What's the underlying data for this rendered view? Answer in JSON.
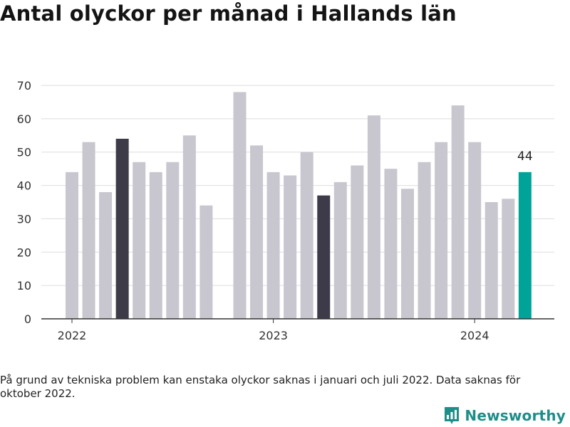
{
  "title": "Antal olyckor per månad i Hallands län",
  "footnote": "På grund av tekniska problem kan enstaka olyckor saknas i januari och juli 2022. Data saknas för oktober 2022.",
  "brand": {
    "name": "Newsworthy",
    "icon": "bar-chart-logo-icon",
    "color": "#1d8f88"
  },
  "colors": {
    "bar": "#c8c7cf",
    "highlight": "#3d3b48",
    "latest": "#00a398",
    "grid": "#dddddd",
    "axis": "#333333"
  },
  "chart_data": {
    "type": "bar",
    "title": "Antal olyckor per månad i Hallands län",
    "xlabel": "",
    "ylabel": "",
    "ylim": [
      0,
      70
    ],
    "yticks": [
      0,
      10,
      20,
      30,
      40,
      50,
      60,
      70
    ],
    "grid": true,
    "x_tick_labels": [
      {
        "label": "2022",
        "x": "2022-01"
      },
      {
        "label": "2023",
        "x": "2023-01"
      },
      {
        "label": "2024",
        "x": "2024-01"
      }
    ],
    "points": [
      {
        "x": "2022-01",
        "value": 44,
        "style": "bar"
      },
      {
        "x": "2022-02",
        "value": 53,
        "style": "bar"
      },
      {
        "x": "2022-03",
        "value": 38,
        "style": "bar"
      },
      {
        "x": "2022-04",
        "value": 54,
        "style": "highlight"
      },
      {
        "x": "2022-05",
        "value": 47,
        "style": "bar"
      },
      {
        "x": "2022-06",
        "value": 44,
        "style": "bar"
      },
      {
        "x": "2022-07",
        "value": 47,
        "style": "bar"
      },
      {
        "x": "2022-08",
        "value": 55,
        "style": "bar"
      },
      {
        "x": "2022-09",
        "value": 34,
        "style": "bar"
      },
      {
        "x": "2022-10",
        "value": null,
        "style": "missing"
      },
      {
        "x": "2022-11",
        "value": 68,
        "style": "bar"
      },
      {
        "x": "2022-12",
        "value": 52,
        "style": "bar"
      },
      {
        "x": "2023-01",
        "value": 44,
        "style": "bar"
      },
      {
        "x": "2023-02",
        "value": 43,
        "style": "bar"
      },
      {
        "x": "2023-03",
        "value": 50,
        "style": "bar"
      },
      {
        "x": "2023-04",
        "value": 37,
        "style": "highlight"
      },
      {
        "x": "2023-05",
        "value": 41,
        "style": "bar"
      },
      {
        "x": "2023-06",
        "value": 46,
        "style": "bar"
      },
      {
        "x": "2023-07",
        "value": 61,
        "style": "bar"
      },
      {
        "x": "2023-08",
        "value": 45,
        "style": "bar"
      },
      {
        "x": "2023-09",
        "value": 39,
        "style": "bar"
      },
      {
        "x": "2023-10",
        "value": 47,
        "style": "bar"
      },
      {
        "x": "2023-11",
        "value": 53,
        "style": "bar"
      },
      {
        "x": "2023-12",
        "value": 64,
        "style": "bar"
      },
      {
        "x": "2024-01",
        "value": 53,
        "style": "bar"
      },
      {
        "x": "2024-02",
        "value": 35,
        "style": "bar"
      },
      {
        "x": "2024-03",
        "value": 36,
        "style": "bar"
      },
      {
        "x": "2024-04",
        "value": 44,
        "style": "latest"
      }
    ],
    "annotations": [
      {
        "x": "2024-04",
        "text": "44"
      }
    ]
  }
}
